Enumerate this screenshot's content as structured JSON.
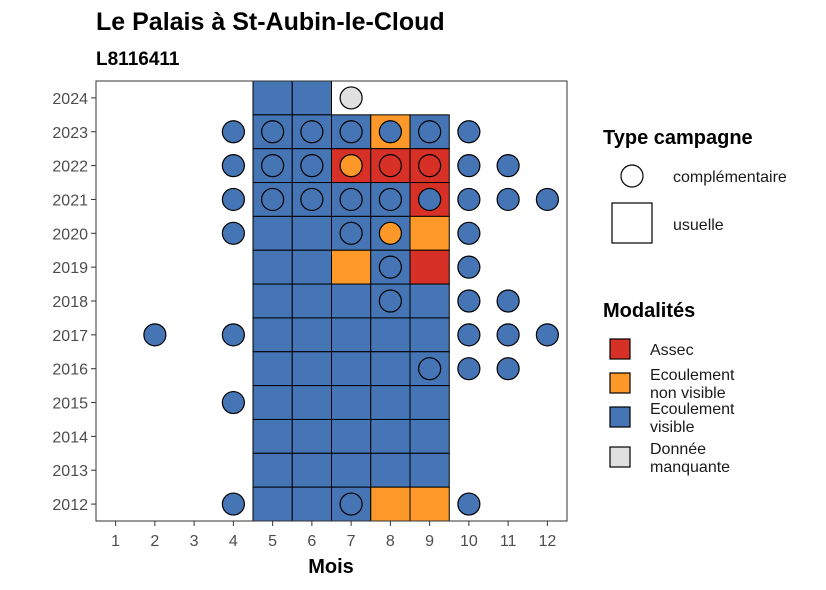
{
  "chart_data": {
    "type": "heatmap",
    "title": "Le Palais à St-Aubin-le-Cloud",
    "subtitle": "L8116411",
    "xlabel": "Mois",
    "ylabel": "",
    "x_ticks": [
      1,
      2,
      3,
      4,
      5,
      6,
      7,
      8,
      9,
      10,
      11,
      12
    ],
    "y_ticks": [
      2012,
      2013,
      2014,
      2015,
      2016,
      2017,
      2018,
      2019,
      2020,
      2021,
      2022,
      2023,
      2024
    ],
    "xlim": [
      0.5,
      12.5
    ],
    "ylim": [
      2011.5,
      2024.5
    ],
    "grid": false,
    "colors": {
      "Assec": "#D73027",
      "Ecoulement non visible": "#FE9929",
      "Ecoulement visible": "#4575B4",
      "Donnée manquante": "#E0E0E0"
    },
    "legend_shape": {
      "title": "Type campagne",
      "items": [
        "complémentaire",
        "usuelle"
      ]
    },
    "legend_modalites": {
      "title": "Modalités",
      "items": [
        {
          "key": "Assec",
          "lines": [
            "Assec"
          ]
        },
        {
          "key": "Ecoulement non visible",
          "lines": [
            "Ecoulement",
            "non visible"
          ]
        },
        {
          "key": "Ecoulement visible",
          "lines": [
            "Ecoulement",
            "visible"
          ]
        },
        {
          "key": "Donnée manquante",
          "lines": [
            "Donnée",
            "manquante"
          ]
        }
      ]
    },
    "usuelle": [
      {
        "year": 2024,
        "month": 5,
        "mod": "Ecoulement visible"
      },
      {
        "year": 2024,
        "month": 6,
        "mod": "Ecoulement visible"
      },
      {
        "year": 2023,
        "month": 5,
        "mod": "Ecoulement visible"
      },
      {
        "year": 2023,
        "month": 6,
        "mod": "Ecoulement visible"
      },
      {
        "year": 2023,
        "month": 7,
        "mod": "Ecoulement visible"
      },
      {
        "year": 2023,
        "month": 8,
        "mod": "Ecoulement non visible"
      },
      {
        "year": 2023,
        "month": 9,
        "mod": "Ecoulement visible"
      },
      {
        "year": 2022,
        "month": 5,
        "mod": "Ecoulement visible"
      },
      {
        "year": 2022,
        "month": 6,
        "mod": "Ecoulement visible"
      },
      {
        "year": 2022,
        "month": 7,
        "mod": "Assec"
      },
      {
        "year": 2022,
        "month": 8,
        "mod": "Assec"
      },
      {
        "year": 2022,
        "month": 9,
        "mod": "Assec"
      },
      {
        "year": 2021,
        "month": 5,
        "mod": "Ecoulement visible"
      },
      {
        "year": 2021,
        "month": 6,
        "mod": "Ecoulement visible"
      },
      {
        "year": 2021,
        "month": 7,
        "mod": "Ecoulement visible"
      },
      {
        "year": 2021,
        "month": 8,
        "mod": "Ecoulement visible"
      },
      {
        "year": 2021,
        "month": 9,
        "mod": "Assec"
      },
      {
        "year": 2020,
        "month": 5,
        "mod": "Ecoulement visible"
      },
      {
        "year": 2020,
        "month": 6,
        "mod": "Ecoulement visible"
      },
      {
        "year": 2020,
        "month": 7,
        "mod": "Ecoulement visible"
      },
      {
        "year": 2020,
        "month": 8,
        "mod": "Ecoulement visible"
      },
      {
        "year": 2020,
        "month": 9,
        "mod": "Ecoulement non visible"
      },
      {
        "year": 2019,
        "month": 5,
        "mod": "Ecoulement visible"
      },
      {
        "year": 2019,
        "month": 6,
        "mod": "Ecoulement visible"
      },
      {
        "year": 2019,
        "month": 7,
        "mod": "Ecoulement non visible"
      },
      {
        "year": 2019,
        "month": 8,
        "mod": "Ecoulement visible"
      },
      {
        "year": 2019,
        "month": 9,
        "mod": "Assec"
      },
      {
        "year": 2018,
        "month": 5,
        "mod": "Ecoulement visible"
      },
      {
        "year": 2018,
        "month": 6,
        "mod": "Ecoulement visible"
      },
      {
        "year": 2018,
        "month": 7,
        "mod": "Ecoulement visible"
      },
      {
        "year": 2018,
        "month": 8,
        "mod": "Ecoulement visible"
      },
      {
        "year": 2018,
        "month": 9,
        "mod": "Ecoulement visible"
      },
      {
        "year": 2017,
        "month": 5,
        "mod": "Ecoulement visible"
      },
      {
        "year": 2017,
        "month": 6,
        "mod": "Ecoulement visible"
      },
      {
        "year": 2017,
        "month": 7,
        "mod": "Ecoulement visible"
      },
      {
        "year": 2017,
        "month": 8,
        "mod": "Ecoulement visible"
      },
      {
        "year": 2017,
        "month": 9,
        "mod": "Ecoulement visible"
      },
      {
        "year": 2016,
        "month": 5,
        "mod": "Ecoulement visible"
      },
      {
        "year": 2016,
        "month": 6,
        "mod": "Ecoulement visible"
      },
      {
        "year": 2016,
        "month": 7,
        "mod": "Ecoulement visible"
      },
      {
        "year": 2016,
        "month": 8,
        "mod": "Ecoulement visible"
      },
      {
        "year": 2016,
        "month": 9,
        "mod": "Ecoulement visible"
      },
      {
        "year": 2015,
        "month": 5,
        "mod": "Ecoulement visible"
      },
      {
        "year": 2015,
        "month": 6,
        "mod": "Ecoulement visible"
      },
      {
        "year": 2015,
        "month": 7,
        "mod": "Ecoulement visible"
      },
      {
        "year": 2015,
        "month": 8,
        "mod": "Ecoulement visible"
      },
      {
        "year": 2015,
        "month": 9,
        "mod": "Ecoulement visible"
      },
      {
        "year": 2014,
        "month": 5,
        "mod": "Ecoulement visible"
      },
      {
        "year": 2014,
        "month": 6,
        "mod": "Ecoulement visible"
      },
      {
        "year": 2014,
        "month": 7,
        "mod": "Ecoulement visible"
      },
      {
        "year": 2014,
        "month": 8,
        "mod": "Ecoulement visible"
      },
      {
        "year": 2014,
        "month": 9,
        "mod": "Ecoulement visible"
      },
      {
        "year": 2013,
        "month": 5,
        "mod": "Ecoulement visible"
      },
      {
        "year": 2013,
        "month": 6,
        "mod": "Ecoulement visible"
      },
      {
        "year": 2013,
        "month": 7,
        "mod": "Ecoulement visible"
      },
      {
        "year": 2013,
        "month": 8,
        "mod": "Ecoulement visible"
      },
      {
        "year": 2013,
        "month": 9,
        "mod": "Ecoulement visible"
      },
      {
        "year": 2012,
        "month": 5,
        "mod": "Ecoulement visible"
      },
      {
        "year": 2012,
        "month": 6,
        "mod": "Ecoulement visible"
      },
      {
        "year": 2012,
        "month": 7,
        "mod": "Ecoulement visible"
      },
      {
        "year": 2012,
        "month": 8,
        "mod": "Ecoulement non visible"
      },
      {
        "year": 2012,
        "month": 9,
        "mod": "Ecoulement non visible"
      }
    ],
    "complementaire": [
      {
        "year": 2024,
        "month": 7,
        "mod": "Donnée manquante"
      },
      {
        "year": 2023,
        "month": 4,
        "mod": "Ecoulement visible"
      },
      {
        "year": 2023,
        "month": 5,
        "mod": "Ecoulement visible"
      },
      {
        "year": 2023,
        "month": 6,
        "mod": "Ecoulement visible"
      },
      {
        "year": 2023,
        "month": 7,
        "mod": "Ecoulement visible"
      },
      {
        "year": 2023,
        "month": 8,
        "mod": "Ecoulement visible"
      },
      {
        "year": 2023,
        "month": 9,
        "mod": "Ecoulement visible"
      },
      {
        "year": 2023,
        "month": 10,
        "mod": "Ecoulement visible"
      },
      {
        "year": 2022,
        "month": 4,
        "mod": "Ecoulement visible"
      },
      {
        "year": 2022,
        "month": 5,
        "mod": "Ecoulement visible"
      },
      {
        "year": 2022,
        "month": 6,
        "mod": "Ecoulement visible"
      },
      {
        "year": 2022,
        "month": 7,
        "mod": "Ecoulement non visible"
      },
      {
        "year": 2022,
        "month": 8,
        "mod": "Assec"
      },
      {
        "year": 2022,
        "month": 9,
        "mod": "Assec"
      },
      {
        "year": 2022,
        "month": 10,
        "mod": "Ecoulement visible"
      },
      {
        "year": 2022,
        "month": 11,
        "mod": "Ecoulement visible"
      },
      {
        "year": 2021,
        "month": 4,
        "mod": "Ecoulement visible"
      },
      {
        "year": 2021,
        "month": 5,
        "mod": "Ecoulement visible"
      },
      {
        "year": 2021,
        "month": 6,
        "mod": "Ecoulement visible"
      },
      {
        "year": 2021,
        "month": 7,
        "mod": "Ecoulement visible"
      },
      {
        "year": 2021,
        "month": 8,
        "mod": "Ecoulement visible"
      },
      {
        "year": 2021,
        "month": 9,
        "mod": "Ecoulement visible"
      },
      {
        "year": 2021,
        "month": 10,
        "mod": "Ecoulement visible"
      },
      {
        "year": 2021,
        "month": 11,
        "mod": "Ecoulement visible"
      },
      {
        "year": 2021,
        "month": 12,
        "mod": "Ecoulement visible"
      },
      {
        "year": 2020,
        "month": 4,
        "mod": "Ecoulement visible"
      },
      {
        "year": 2020,
        "month": 7,
        "mod": "Ecoulement visible"
      },
      {
        "year": 2020,
        "month": 8,
        "mod": "Ecoulement non visible"
      },
      {
        "year": 2020,
        "month": 10,
        "mod": "Ecoulement visible"
      },
      {
        "year": 2019,
        "month": 8,
        "mod": "Ecoulement visible"
      },
      {
        "year": 2019,
        "month": 10,
        "mod": "Ecoulement visible"
      },
      {
        "year": 2018,
        "month": 8,
        "mod": "Ecoulement visible"
      },
      {
        "year": 2018,
        "month": 10,
        "mod": "Ecoulement visible"
      },
      {
        "year": 2018,
        "month": 11,
        "mod": "Ecoulement visible"
      },
      {
        "year": 2017,
        "month": 2,
        "mod": "Ecoulement visible"
      },
      {
        "year": 2017,
        "month": 4,
        "mod": "Ecoulement visible"
      },
      {
        "year": 2017,
        "month": 10,
        "mod": "Ecoulement visible"
      },
      {
        "year": 2017,
        "month": 11,
        "mod": "Ecoulement visible"
      },
      {
        "year": 2017,
        "month": 12,
        "mod": "Ecoulement visible"
      },
      {
        "year": 2016,
        "month": 9,
        "mod": "Ecoulement visible"
      },
      {
        "year": 2016,
        "month": 10,
        "mod": "Ecoulement visible"
      },
      {
        "year": 2016,
        "month": 11,
        "mod": "Ecoulement visible"
      },
      {
        "year": 2015,
        "month": 4,
        "mod": "Ecoulement visible"
      },
      {
        "year": 2012,
        "month": 4,
        "mod": "Ecoulement visible"
      },
      {
        "year": 2012,
        "month": 7,
        "mod": "Ecoulement visible"
      },
      {
        "year": 2012,
        "month": 10,
        "mod": "Ecoulement visible"
      }
    ]
  }
}
